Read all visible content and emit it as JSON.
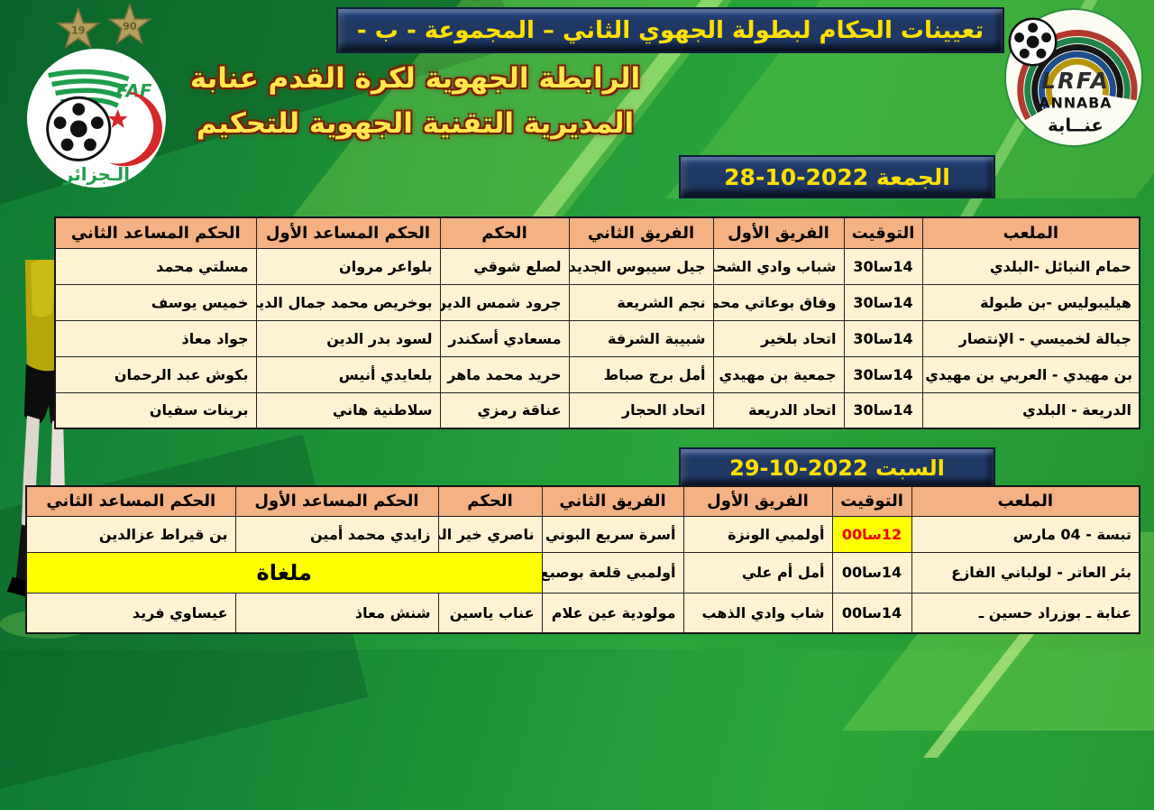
{
  "header": {
    "title": "تعيينات الحكام لبطولة الجهوي الثاني – المجموعة - ب -",
    "org_line1": "الرابطة الجهوية لكرة القدم عنابة",
    "org_line2": "المديرية التقنية الجهوية للتحكيم"
  },
  "logos": {
    "faf": {
      "country_label": "الـجزائر",
      "star_years": [
        "19",
        "90"
      ]
    },
    "lrfa": {
      "acronym": "LRFA",
      "city": "ANNABA",
      "city_arabic": "عنــابة"
    }
  },
  "colors": {
    "background_green": "#1d9238",
    "banner_navy": "#1f3864",
    "banner_text_yellow": "#ffe100",
    "header_salmon": "#f4b183",
    "cell_cream": "#fdf2d2",
    "highlight_yellow": "#ffff00",
    "highlight_red": "#ef0000"
  },
  "columns": [
    "الملعب",
    "التوقيت",
    "الفريق الأول",
    "الفريق الثاني",
    "الحكم",
    "الحكم المساعد الأول",
    "الحكم المساعد الثاني"
  ],
  "sections": [
    {
      "date_label": "الجمعة 2022-10-28",
      "rows": [
        {
          "stadium": "حمام النبائل -البلدي",
          "time": "14سا30",
          "team1": "شباب وادي الشحم",
          "team2": "جيل سيبوس الجديد",
          "referee": "لصلع شوقي",
          "assistant1": "بلواعر مروان",
          "assistant2": "مسلتي محمد"
        },
        {
          "stadium": "هيليبوليس  -بن طبولة",
          "time": "14سا30",
          "team1": "وفاق بوعاتي محمود",
          "team2": "نجم الشريعة",
          "referee": "جرود شمس الدين",
          "assistant1": "بوخريص محمد جمال الدين",
          "assistant2": "خميس يوسف"
        },
        {
          "stadium": "جبالة لخميسي - الإنتصار",
          "time": "14سا30",
          "team1": "اتحاد بلخير",
          "team2": "شبيبة الشرفة",
          "referee": "مسعادي أسكندر",
          "assistant1": "لسود بدر الدين",
          "assistant2": "جواد معاذ"
        },
        {
          "stadium": "بن مهيدي - العربي بن مهيدي",
          "time": "14سا30",
          "team1": "جمعية بن مهيدي",
          "team2": "أمل برج صباط",
          "referee": "حريد محمد ماهر",
          "assistant1": "بلعايدي أنيس",
          "assistant2": "بكوش عبد الرحمان"
        },
        {
          "stadium": "الدريعة - البلدي",
          "time": "14سا30",
          "team1": "اتحاد الدريعة",
          "team2": "اتحاد الحجار",
          "referee": "عناقة رمزي",
          "assistant1": "سلاطنية هاني",
          "assistant2": "برينات سفيان"
        }
      ]
    },
    {
      "date_label": "السبت 2022-10-29",
      "rows": [
        {
          "stadium": "تبسة - 04 مارس",
          "time": "12سا00",
          "time_highlight": true,
          "team1": "أولمبي الونزة",
          "team2": "أسرة سريع البوني",
          "referee": "ناصري خير الدين",
          "assistant1": "زايدي محمد أمين",
          "assistant2": "بن قيراط عزالدين"
        },
        {
          "stadium": "بئر العاتر - لولباني الفازع",
          "time": "14سا00",
          "team1": "أمل أم علي",
          "team2": "أولمبي قلعة بوصبع",
          "cancelled": true,
          "cancelled_label": "ملغاة"
        },
        {
          "stadium": "عنابة ـ بوزراد حسين ـ",
          "time": "14سا00",
          "team1": "شاب وادي الذهب",
          "team2": "مولودية عين علام",
          "referee": "عناب ياسين",
          "assistant1": "شنش معاذ",
          "assistant2": "عيساوي فريد"
        }
      ]
    }
  ]
}
